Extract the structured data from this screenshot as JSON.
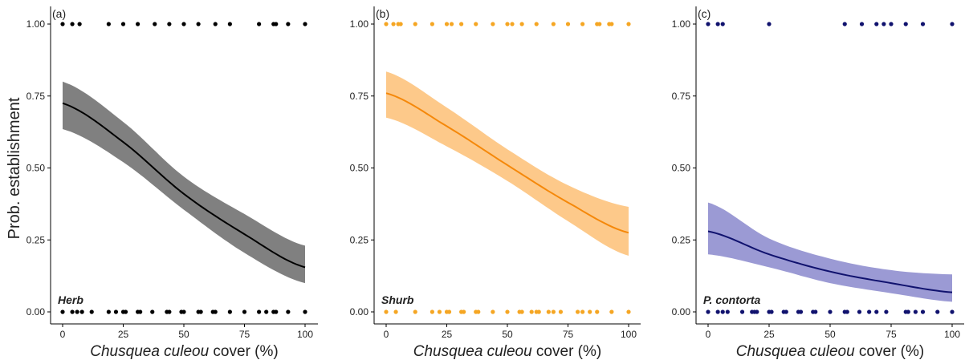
{
  "figure": {
    "ylabel": "Prob. establishment"
  },
  "chart_data": [
    {
      "type": "line",
      "panel_tag": "(a)",
      "group_label": "Herb",
      "xlabel_italic": "Chusquea culeou",
      "xlabel_rest": " cover (%)",
      "xlim": [
        0,
        100
      ],
      "ylim": [
        0,
        1
      ],
      "xticks": [
        "0",
        "25",
        "50",
        "75",
        "100"
      ],
      "yticks": [
        "0.00",
        "0.25",
        "0.50",
        "0.75",
        "1.00"
      ],
      "line_color": "#000000",
      "band_color": "#808080",
      "point_color": "#000000",
      "fit": {
        "x": [
          0,
          25,
          50,
          75,
          100
        ],
        "y": [
          0.725,
          0.59,
          0.41,
          0.27,
          0.155
        ],
        "lower": [
          0.635,
          0.52,
          0.355,
          0.205,
          0.1
        ],
        "upper": [
          0.8,
          0.66,
          0.47,
          0.34,
          0.23
        ]
      },
      "points_y1": [
        0,
        4,
        7,
        19,
        25,
        31,
        38,
        44,
        50,
        56,
        63,
        69,
        81,
        87,
        88,
        93,
        100
      ],
      "points_y0": [
        0,
        4,
        6,
        8,
        12,
        19,
        22,
        25,
        26,
        31,
        32,
        37,
        43,
        44,
        49,
        50,
        56,
        57,
        62,
        63,
        69,
        75,
        81,
        84,
        87,
        88,
        93,
        100
      ]
    },
    {
      "type": "line",
      "panel_tag": "(b)",
      "group_label": "Shurb",
      "xlabel_italic": "Chusquea culeou",
      "xlabel_rest": " cover (%)",
      "xlim": [
        0,
        100
      ],
      "ylim": [
        0,
        1
      ],
      "xticks": [
        "0",
        "25",
        "50",
        "75",
        "100"
      ],
      "yticks": [
        "0.00",
        "0.25",
        "0.50",
        "0.75",
        "1.00"
      ],
      "line_color": "#f5880a",
      "band_color": "#fdc98a",
      "point_color": "#f5a623",
      "fit": {
        "x": [
          0,
          25,
          50,
          75,
          100
        ],
        "y": [
          0.76,
          0.645,
          0.51,
          0.38,
          0.275
        ],
        "lower": [
          0.675,
          0.575,
          0.455,
          0.315,
          0.195
        ],
        "upper": [
          0.835,
          0.71,
          0.565,
          0.44,
          0.365
        ]
      },
      "points_y1": [
        0,
        3,
        5,
        6,
        12,
        19,
        25,
        27,
        31,
        37,
        44,
        50,
        52,
        56,
        62,
        69,
        75,
        81,
        87,
        88,
        92,
        93,
        100
      ],
      "points_y0": [
        0,
        4,
        12,
        19,
        22,
        25,
        26,
        31,
        32,
        37,
        38,
        44,
        50,
        55,
        56,
        60,
        62,
        63,
        67,
        69,
        72,
        79,
        81,
        84,
        87,
        93,
        100
      ]
    },
    {
      "type": "line",
      "panel_tag": "(c)",
      "group_label": "P. contorta",
      "xlabel_italic": "Chusquea culeou",
      "xlabel_rest": " cover (%)",
      "xlim": [
        0,
        100
      ],
      "ylim": [
        0,
        1
      ],
      "xticks": [
        "0",
        "25",
        "50",
        "75",
        "100"
      ],
      "yticks": [
        "0.00",
        "0.25",
        "0.50",
        "0.75",
        "1.00"
      ],
      "line_color": "#10126e",
      "band_color": "#9b9ad4",
      "point_color": "#10126e",
      "fit": {
        "x": [
          0,
          25,
          50,
          75,
          100
        ],
        "y": [
          0.28,
          0.2,
          0.14,
          0.1,
          0.068
        ],
        "lower": [
          0.2,
          0.155,
          0.1,
          0.065,
          0.035
        ],
        "upper": [
          0.38,
          0.255,
          0.185,
          0.145,
          0.13
        ]
      },
      "points_y1": [
        0,
        4,
        6,
        25,
        56,
        63,
        69,
        72,
        75,
        81,
        88,
        100
      ],
      "points_y0": [
        0,
        4,
        6,
        8,
        14,
        18,
        19,
        20,
        25,
        26,
        31,
        32,
        37,
        38,
        43,
        44,
        50,
        56,
        57,
        62,
        66,
        69,
        73,
        81,
        82,
        85,
        88,
        94,
        100
      ]
    }
  ]
}
